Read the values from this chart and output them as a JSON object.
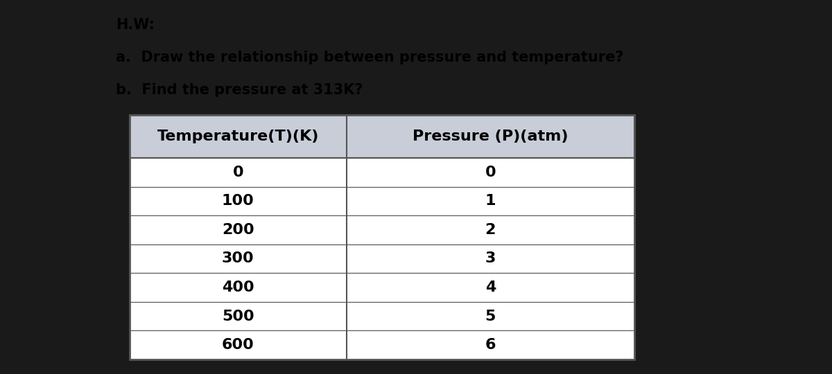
{
  "title_line1": "H.W:",
  "title_line2": "a.  Draw the relationship between pressure and temperature?",
  "title_line3": "b.  Find the pressure at 313K?",
  "col1_header": "Temperature(T)(K)",
  "col2_header": "Pressure (P)(atm)",
  "temperatures": [
    0,
    100,
    200,
    300,
    400,
    500,
    600
  ],
  "pressures": [
    0,
    1,
    2,
    3,
    4,
    5,
    6
  ],
  "header_bg": "#c8cdd8",
  "row_bg_white": "#ffffff",
  "table_border": "#555555",
  "text_color": "#000000",
  "outer_bg": "#1a1a1a",
  "content_bg": "#ffffff",
  "title_fontsize": 15,
  "header_fontsize": 16,
  "data_fontsize": 16
}
